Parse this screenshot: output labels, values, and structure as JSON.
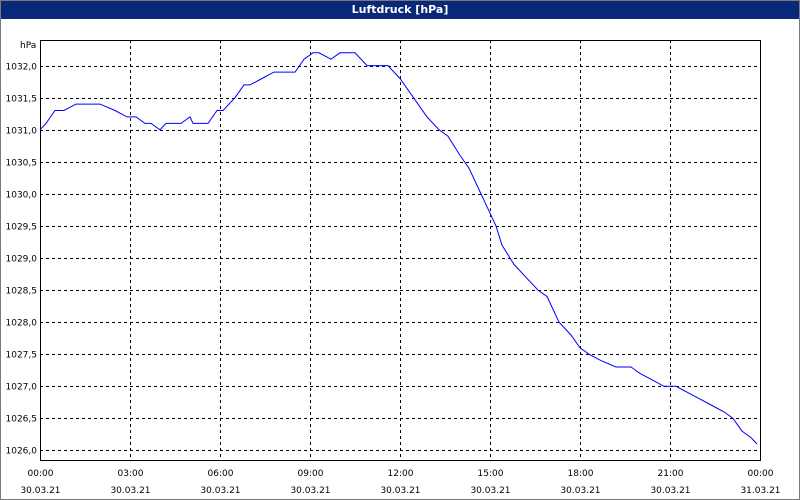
{
  "chart_data": {
    "type": "line",
    "title": "Luftdruck [hPa]",
    "ylabel": "hPa",
    "xlabel": "",
    "ylim": [
      1025.85,
      1032.4
    ],
    "xlim": [
      0,
      24
    ],
    "yticks": [
      1026.0,
      1026.5,
      1027.0,
      1027.5,
      1028.0,
      1028.5,
      1029.0,
      1029.5,
      1030.0,
      1030.5,
      1031.0,
      1031.5,
      1032.0
    ],
    "ytick_labels": [
      "1026,0",
      "1026,5",
      "1027,0",
      "1027,5",
      "1028,0",
      "1028,5",
      "1029,0",
      "1029,5",
      "1030,0",
      "1030,5",
      "1031,0",
      "1031,5",
      "1032,0"
    ],
    "xticks": [
      0,
      3,
      6,
      9,
      12,
      15,
      18,
      21,
      24
    ],
    "xtick_labels": [
      {
        "time": "00:00",
        "date": "30.03.21"
      },
      {
        "time": "03:00",
        "date": "30.03.21"
      },
      {
        "time": "06:00",
        "date": "30.03.21"
      },
      {
        "time": "09:00",
        "date": "30.03.21"
      },
      {
        "time": "12:00",
        "date": "30.03.21"
      },
      {
        "time": "15:00",
        "date": "30.03.21"
      },
      {
        "time": "18:00",
        "date": "30.03.21"
      },
      {
        "time": "21:00",
        "date": "30.03.21"
      },
      {
        "time": "00:00",
        "date": "31.03.21"
      }
    ],
    "grid": true,
    "series": [
      {
        "color": "#0000ff",
        "x": [
          0,
          0.2,
          0.5,
          0.8,
          1.2,
          1.5,
          2.0,
          2.5,
          2.9,
          3.2,
          3.5,
          3.7,
          4.0,
          4.2,
          4.4,
          4.7,
          5.0,
          5.1,
          5.3,
          5.6,
          5.9,
          6.1,
          6.5,
          6.8,
          7.0,
          7.4,
          7.8,
          8.1,
          8.5,
          8.8,
          9.1,
          9.3,
          9.7,
          10.0,
          10.5,
          10.9,
          11.2,
          11.6,
          12.0,
          12.3,
          12.6,
          12.9,
          13.3,
          13.6,
          14.0,
          14.3,
          14.6,
          14.9,
          15.2,
          15.4,
          15.8,
          16.2,
          16.6,
          16.9,
          17.3,
          17.7,
          18.0,
          18.3,
          18.7,
          19.2,
          19.7,
          20.0,
          20.4,
          20.8,
          21.2,
          21.6,
          22.0,
          22.4,
          22.8,
          23.1,
          23.4,
          23.7,
          23.9
        ],
        "y": [
          1031.0,
          1031.1,
          1031.3,
          1031.3,
          1031.4,
          1031.4,
          1031.4,
          1031.3,
          1031.2,
          1031.2,
          1031.1,
          1031.1,
          1031.0,
          1031.1,
          1031.1,
          1031.1,
          1031.2,
          1031.1,
          1031.1,
          1031.1,
          1031.3,
          1031.3,
          1031.5,
          1031.7,
          1031.7,
          1031.8,
          1031.9,
          1031.9,
          1031.9,
          1032.1,
          1032.2,
          1032.2,
          1032.1,
          1032.2,
          1032.2,
          1032.0,
          1032.0,
          1032.0,
          1031.8,
          1031.6,
          1031.4,
          1031.2,
          1031.0,
          1030.9,
          1030.6,
          1030.4,
          1030.1,
          1029.8,
          1029.5,
          1029.2,
          1028.9,
          1028.7,
          1028.5,
          1028.4,
          1028.0,
          1027.8,
          1027.6,
          1027.5,
          1027.4,
          1027.3,
          1027.3,
          1027.2,
          1027.1,
          1027.0,
          1027.0,
          1026.9,
          1026.8,
          1026.7,
          1026.6,
          1026.5,
          1026.3,
          1026.2,
          1026.1
        ]
      }
    ]
  }
}
